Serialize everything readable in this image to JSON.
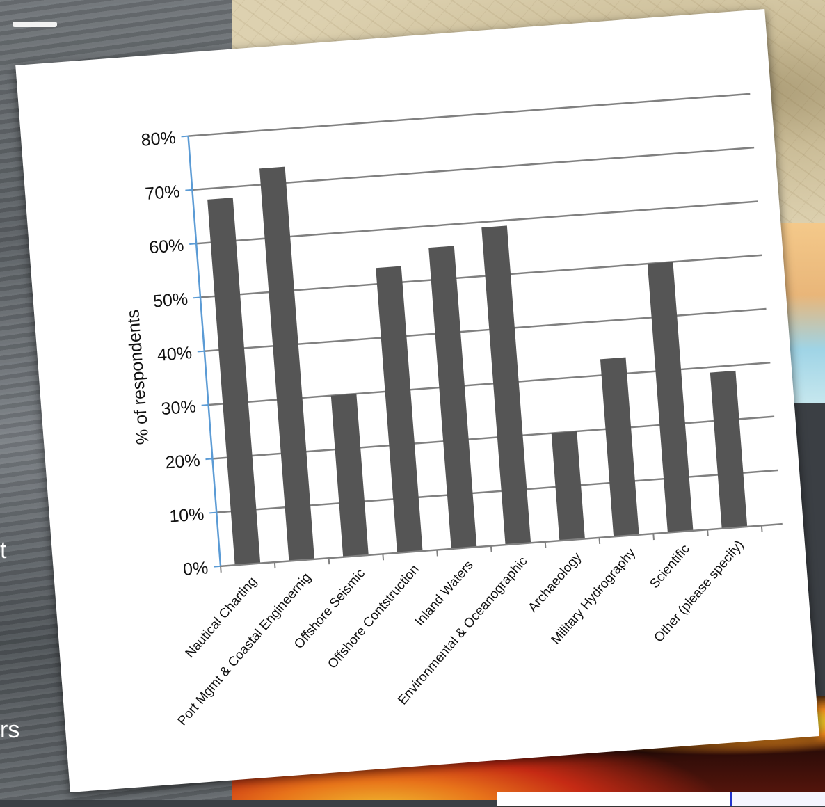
{
  "side": {
    "glyph_t": "t",
    "glyph_rs": "rs"
  },
  "chart_data": {
    "type": "bar",
    "title": "",
    "xlabel": "",
    "ylabel": "% of respondents",
    "ylim": [
      0,
      80
    ],
    "y_ticks": [
      "0%",
      "10%",
      "20%",
      "30%",
      "40%",
      "50%",
      "60%",
      "70%",
      "80%"
    ],
    "grid": true,
    "legend": "none",
    "categories": [
      "Nautical Charting",
      "Port Mgmt & Coastal Engineernig",
      "Offshore Seismic",
      "Offshore Contstruction",
      "Inland Waters",
      "Environmental & Oceanographic",
      "Archaeology",
      "Military Hydrography",
      "Scientific",
      "Other (please specify)"
    ],
    "values": [
      68,
      73,
      30,
      53,
      56,
      59,
      20,
      33,
      50,
      29
    ],
    "colors": {
      "bar": "#555555",
      "axis": "#5b9bd5",
      "grid": "#808080"
    }
  }
}
